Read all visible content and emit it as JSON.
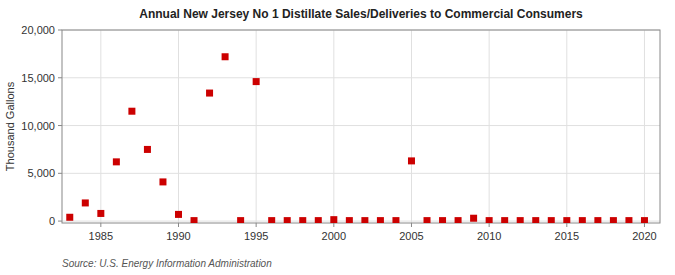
{
  "chart_data": {
    "type": "scatter",
    "title": "Annual New Jersey No 1 Distillate Sales/Deliveries to Commercial Consumers",
    "y_label": "Thousand Gallons",
    "annotations": [
      "Source: U.S. Energy Information Administration"
    ],
    "x": [
      1983,
      1984,
      1985,
      1986,
      1987,
      1988,
      1989,
      1990,
      1991,
      1992,
      1993,
      1994,
      1995,
      1996,
      1997,
      1998,
      1999,
      2000,
      2001,
      2002,
      2003,
      2004,
      2005,
      2006,
      2007,
      2008,
      2009,
      2010,
      2011,
      2012,
      2013,
      2014,
      2015,
      2016,
      2017,
      2018,
      2019,
      2020
    ],
    "values": [
      400,
      1900,
      800,
      6200,
      11500,
      7500,
      4100,
      700,
      50,
      13400,
      17200,
      50,
      14600,
      50,
      50,
      50,
      50,
      150,
      50,
      50,
      50,
      50,
      6300,
      50,
      50,
      50,
      300,
      50,
      50,
      50,
      50,
      50,
      50,
      50,
      50,
      50,
      50,
      50
    ],
    "color": "#cc0000",
    "marker": "square",
    "xlim": [
      1982.5,
      2021
    ],
    "xticks": [
      1985,
      1990,
      1995,
      2000,
      2005,
      2010,
      2015,
      2020
    ],
    "ylim": [
      -200,
      20000
    ],
    "yticks": [
      0,
      {
        "value": 5000,
        "label": "5,000"
      },
      {
        "value": 10000,
        "label": "10,000"
      },
      {
        "value": 15000,
        "label": "15,000"
      },
      {
        "value": 20000,
        "label": "20,000"
      }
    ],
    "grid": true
  }
}
